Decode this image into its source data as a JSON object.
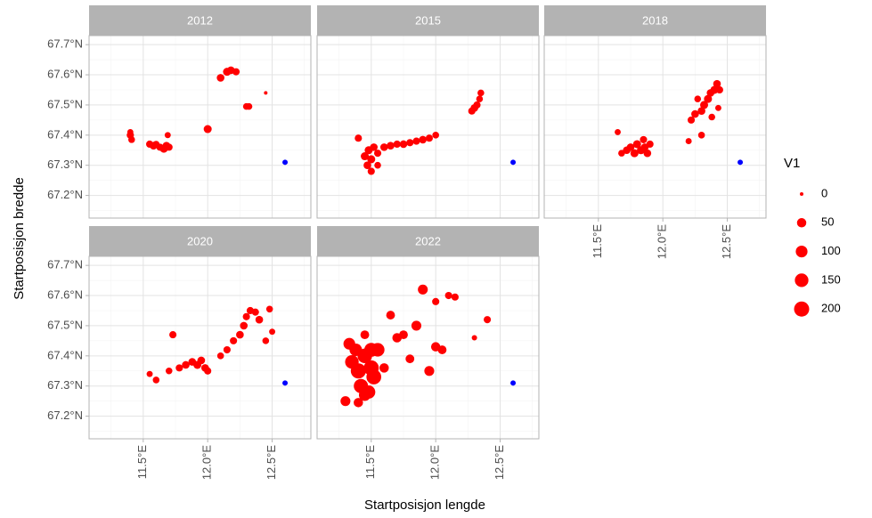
{
  "chart_data": {
    "type": "scatter",
    "x_label": "Startposisjon lengde",
    "y_label": "Startposisjon bredde",
    "color": "#ff0000",
    "reference_color": "#0000ff",
    "xlim": [
      11.08,
      12.8
    ],
    "ylim": [
      67.125,
      67.73
    ],
    "xticks": [
      {
        "value": 11.5,
        "label": "11.5°E"
      },
      {
        "value": 12.0,
        "label": "12.0°E"
      },
      {
        "value": 12.5,
        "label": "12.5°E"
      }
    ],
    "xminor": [
      11.25,
      11.75,
      12.25,
      12.75
    ],
    "yticks": [
      {
        "value": 67.2,
        "label": "67.2°N"
      },
      {
        "value": 67.3,
        "label": "67.3°N"
      },
      {
        "value": 67.4,
        "label": "67.4°N"
      },
      {
        "value": 67.5,
        "label": "67.5°N"
      },
      {
        "value": 67.6,
        "label": "67.6°N"
      },
      {
        "value": 67.7,
        "label": "67.7°N"
      }
    ],
    "yminor": [
      67.15,
      67.25,
      67.35,
      67.45,
      67.55,
      67.65
    ],
    "grid": true,
    "legend": {
      "title": "V1",
      "values": [
        0,
        50,
        100,
        150,
        200
      ],
      "position": "right"
    },
    "facets": [
      {
        "title": "2012",
        "x": [
          11.4,
          11.41,
          11.4,
          11.55,
          11.58,
          11.6,
          11.63,
          11.66,
          11.68,
          11.7,
          11.69,
          12.0,
          12.1,
          12.15,
          12.18,
          12.22,
          12.3,
          12.32,
          12.45
        ],
        "y": [
          67.4,
          67.385,
          67.41,
          67.37,
          67.365,
          67.37,
          67.36,
          67.355,
          67.365,
          67.36,
          67.4,
          67.42,
          67.59,
          67.61,
          67.615,
          67.61,
          67.495,
          67.495,
          67.54
        ],
        "size": [
          20,
          15,
          10,
          20,
          25,
          15,
          20,
          30,
          25,
          20,
          10,
          30,
          25,
          30,
          25,
          20,
          15,
          15,
          0
        ],
        "reference": {
          "x": 12.6,
          "y": 67.31
        }
      },
      {
        "title": "2015",
        "x": [
          11.4,
          11.45,
          11.47,
          11.5,
          11.48,
          11.52,
          11.55,
          11.6,
          11.65,
          11.7,
          11.75,
          11.8,
          11.85,
          11.9,
          11.95,
          12.0,
          11.5,
          11.55,
          12.28,
          12.3,
          12.32,
          12.34,
          12.35
        ],
        "y": [
          67.39,
          67.33,
          67.3,
          67.28,
          67.35,
          67.36,
          67.34,
          67.36,
          67.365,
          67.37,
          67.37,
          67.375,
          67.38,
          67.385,
          67.39,
          67.4,
          67.32,
          67.3,
          67.48,
          67.49,
          67.5,
          67.52,
          67.54
        ],
        "size": [
          20,
          30,
          25,
          20,
          30,
          25,
          20,
          25,
          25,
          20,
          25,
          20,
          20,
          25,
          20,
          15,
          30,
          15,
          20,
          25,
          20,
          15,
          15
        ],
        "reference": {
          "x": 12.6,
          "y": 67.31
        }
      },
      {
        "title": "2018",
        "x": [
          11.65,
          11.68,
          11.72,
          11.75,
          11.78,
          11.8,
          11.83,
          11.86,
          11.88,
          11.9,
          11.85,
          12.2,
          12.22,
          12.25,
          12.27,
          12.3,
          12.32,
          12.35,
          12.37,
          12.4,
          12.42,
          12.44,
          12.38,
          12.3,
          12.43
        ],
        "y": [
          67.41,
          67.34,
          67.35,
          67.36,
          67.34,
          67.37,
          67.35,
          67.36,
          67.34,
          67.37,
          67.385,
          67.38,
          67.45,
          67.47,
          67.52,
          67.48,
          67.5,
          67.52,
          67.54,
          67.55,
          67.57,
          67.55,
          67.46,
          67.4,
          67.49
        ],
        "size": [
          10,
          15,
          25,
          25,
          30,
          30,
          30,
          25,
          25,
          20,
          20,
          10,
          20,
          25,
          15,
          25,
          30,
          30,
          25,
          30,
          25,
          20,
          15,
          15,
          10
        ],
        "reference": {
          "x": 12.6,
          "y": 67.31
        }
      },
      {
        "title": "2020",
        "x": [
          11.55,
          11.6,
          11.73,
          11.7,
          11.78,
          11.83,
          11.88,
          11.92,
          11.95,
          11.98,
          12.0,
          12.1,
          12.15,
          12.2,
          12.25,
          12.28,
          12.3,
          12.33,
          12.37,
          12.4,
          12.45,
          12.48,
          12.5
        ],
        "y": [
          67.34,
          67.32,
          67.47,
          67.35,
          67.36,
          67.37,
          67.38,
          67.37,
          67.385,
          67.36,
          67.35,
          67.4,
          67.42,
          67.45,
          67.47,
          67.5,
          67.53,
          67.55,
          67.545,
          67.52,
          67.45,
          67.555,
          67.48
        ],
        "size": [
          10,
          15,
          20,
          15,
          20,
          25,
          25,
          30,
          25,
          25,
          20,
          15,
          20,
          20,
          25,
          25,
          20,
          20,
          20,
          25,
          15,
          15,
          10
        ],
        "reference": {
          "x": 12.6,
          "y": 67.31
        }
      },
      {
        "title": "2022",
        "x": [
          11.35,
          11.4,
          11.45,
          11.5,
          11.42,
          11.48,
          11.52,
          11.55,
          11.38,
          11.33,
          11.5,
          11.45,
          11.3,
          11.4,
          11.45,
          11.6,
          11.65,
          11.7,
          11.75,
          11.8,
          11.85,
          11.9,
          11.95,
          12.0,
          12.05,
          12.0,
          12.1,
          12.15,
          12.3,
          12.4
        ],
        "y": [
          67.38,
          67.35,
          67.4,
          67.36,
          67.3,
          67.28,
          67.33,
          67.42,
          67.42,
          67.44,
          67.42,
          67.27,
          67.25,
          67.245,
          67.47,
          67.36,
          67.535,
          67.46,
          67.47,
          67.39,
          67.5,
          67.62,
          67.35,
          67.43,
          67.42,
          67.58,
          67.6,
          67.595,
          67.46,
          67.52
        ],
        "size": [
          150,
          200,
          180,
          200,
          170,
          140,
          190,
          150,
          120,
          100,
          160,
          100,
          60,
          50,
          40,
          50,
          40,
          50,
          40,
          40,
          60,
          60,
          60,
          50,
          40,
          20,
          20,
          20,
          5,
          20
        ],
        "reference": {
          "x": 12.6,
          "y": 67.31
        }
      }
    ]
  }
}
